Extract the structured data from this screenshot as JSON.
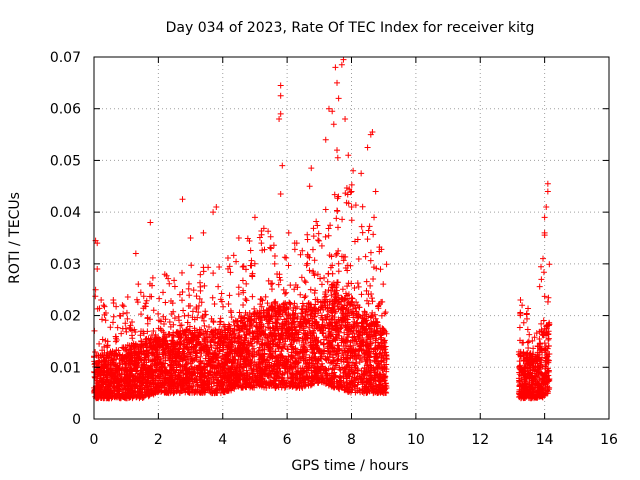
{
  "chart_data": {
    "type": "scatter",
    "title": "Day 034 of 2023, Rate Of TEC Index for receiver kitg",
    "xlabel": "GPS time / hours",
    "ylabel": "ROTI / TECUs",
    "xlim": [
      0,
      16
    ],
    "ylim": [
      0,
      0.07
    ],
    "xticks": [
      0,
      2,
      4,
      6,
      8,
      10,
      12,
      14,
      16
    ],
    "yticks": [
      0,
      0.01,
      0.02,
      0.03,
      0.04,
      0.05,
      0.06,
      0.07
    ],
    "xtick_labels": [
      "0",
      "2",
      "4",
      "6",
      "8",
      "10",
      "12",
      "14",
      "16"
    ],
    "ytick_labels": [
      "0",
      "0.01",
      "0.02",
      "0.03",
      "0.04",
      "0.05",
      "0.06",
      "0.07"
    ],
    "grid": true,
    "marker": "+",
    "color": "#ff0000",
    "series": [
      {
        "name": "ROTI",
        "segments": [
          [
            0.0,
            9.1
          ],
          [
            13.2,
            14.15
          ]
        ],
        "envelope": [
          {
            "x": 0.0,
            "base": 0.004,
            "upper": 0.015,
            "peak": 0.025
          },
          {
            "x": 0.5,
            "base": 0.004,
            "upper": 0.016,
            "peak": 0.022
          },
          {
            "x": 1.0,
            "base": 0.004,
            "upper": 0.018,
            "peak": 0.024
          },
          {
            "x": 1.5,
            "base": 0.004,
            "upper": 0.019,
            "peak": 0.028
          },
          {
            "x": 2.0,
            "base": 0.005,
            "upper": 0.02,
            "peak": 0.027
          },
          {
            "x": 2.5,
            "base": 0.005,
            "upper": 0.021,
            "peak": 0.03
          },
          {
            "x": 3.0,
            "base": 0.005,
            "upper": 0.022,
            "peak": 0.033
          },
          {
            "x": 3.5,
            "base": 0.005,
            "upper": 0.021,
            "peak": 0.031
          },
          {
            "x": 4.0,
            "base": 0.005,
            "upper": 0.022,
            "peak": 0.03
          },
          {
            "x": 4.5,
            "base": 0.006,
            "upper": 0.024,
            "peak": 0.034
          },
          {
            "x": 5.0,
            "base": 0.006,
            "upper": 0.026,
            "peak": 0.036
          },
          {
            "x": 5.5,
            "base": 0.006,
            "upper": 0.027,
            "peak": 0.038
          },
          {
            "x": 6.0,
            "base": 0.006,
            "upper": 0.028,
            "peak": 0.036
          },
          {
            "x": 6.5,
            "base": 0.006,
            "upper": 0.028,
            "peak": 0.035
          },
          {
            "x": 7.0,
            "base": 0.007,
            "upper": 0.028,
            "peak": 0.04
          },
          {
            "x": 7.5,
            "base": 0.006,
            "upper": 0.034,
            "peak": 0.052
          },
          {
            "x": 8.0,
            "base": 0.005,
            "upper": 0.03,
            "peak": 0.046
          },
          {
            "x": 8.5,
            "base": 0.005,
            "upper": 0.025,
            "peak": 0.04
          },
          {
            "x": 9.1,
            "base": 0.005,
            "upper": 0.022,
            "peak": 0.03
          },
          {
            "x": 13.2,
            "base": 0.004,
            "upper": 0.016,
            "peak": 0.021
          },
          {
            "x": 13.6,
            "base": 0.004,
            "upper": 0.016,
            "peak": 0.022
          },
          {
            "x": 13.9,
            "base": 0.004,
            "upper": 0.02,
            "peak": 0.034
          },
          {
            "x": 14.15,
            "base": 0.005,
            "upper": 0.024,
            "peak": 0.04
          }
        ],
        "points": [
          [
            0.05,
            0.0345
          ],
          [
            0.1,
            0.034
          ],
          [
            0.05,
            0.025
          ],
          [
            0.1,
            0.029
          ],
          [
            0.3,
            0.022
          ],
          [
            0.6,
            0.023
          ],
          [
            0.8,
            0.02
          ],
          [
            1.3,
            0.032
          ],
          [
            1.75,
            0.038
          ],
          [
            2.2,
            0.028
          ],
          [
            2.75,
            0.0425
          ],
          [
            3.0,
            0.035
          ],
          [
            3.4,
            0.036
          ],
          [
            3.7,
            0.04
          ],
          [
            3.8,
            0.041
          ],
          [
            4.5,
            0.035
          ],
          [
            5.0,
            0.039
          ],
          [
            5.2,
            0.034
          ],
          [
            5.5,
            0.033
          ],
          [
            5.8,
            0.0645
          ],
          [
            5.8,
            0.0625
          ],
          [
            5.75,
            0.058
          ],
          [
            5.8,
            0.059
          ],
          [
            5.85,
            0.049
          ],
          [
            5.8,
            0.0435
          ],
          [
            6.05,
            0.036
          ],
          [
            6.3,
            0.034
          ],
          [
            6.7,
            0.045
          ],
          [
            6.75,
            0.0485
          ],
          [
            7.2,
            0.054
          ],
          [
            7.3,
            0.06
          ],
          [
            7.4,
            0.0595
          ],
          [
            7.45,
            0.057
          ],
          [
            7.5,
            0.068
          ],
          [
            7.55,
            0.065
          ],
          [
            7.6,
            0.062
          ],
          [
            7.7,
            0.0685
          ],
          [
            7.75,
            0.0695
          ],
          [
            7.8,
            0.058
          ],
          [
            7.55,
            0.052
          ],
          [
            7.9,
            0.051
          ],
          [
            8.05,
            0.048
          ],
          [
            8.0,
            0.044
          ],
          [
            8.3,
            0.0475
          ],
          [
            8.6,
            0.055
          ],
          [
            8.65,
            0.0555
          ],
          [
            8.5,
            0.0525
          ],
          [
            8.75,
            0.044
          ],
          [
            8.7,
            0.039
          ],
          [
            13.25,
            0.023
          ],
          [
            13.3,
            0.022
          ],
          [
            14.0,
            0.039
          ],
          [
            14.05,
            0.041
          ],
          [
            14.1,
            0.044
          ],
          [
            14.1,
            0.0455
          ],
          [
            14.0,
            0.036
          ],
          [
            13.95,
            0.031
          ],
          [
            13.9,
            0.027
          ]
        ]
      }
    ]
  }
}
